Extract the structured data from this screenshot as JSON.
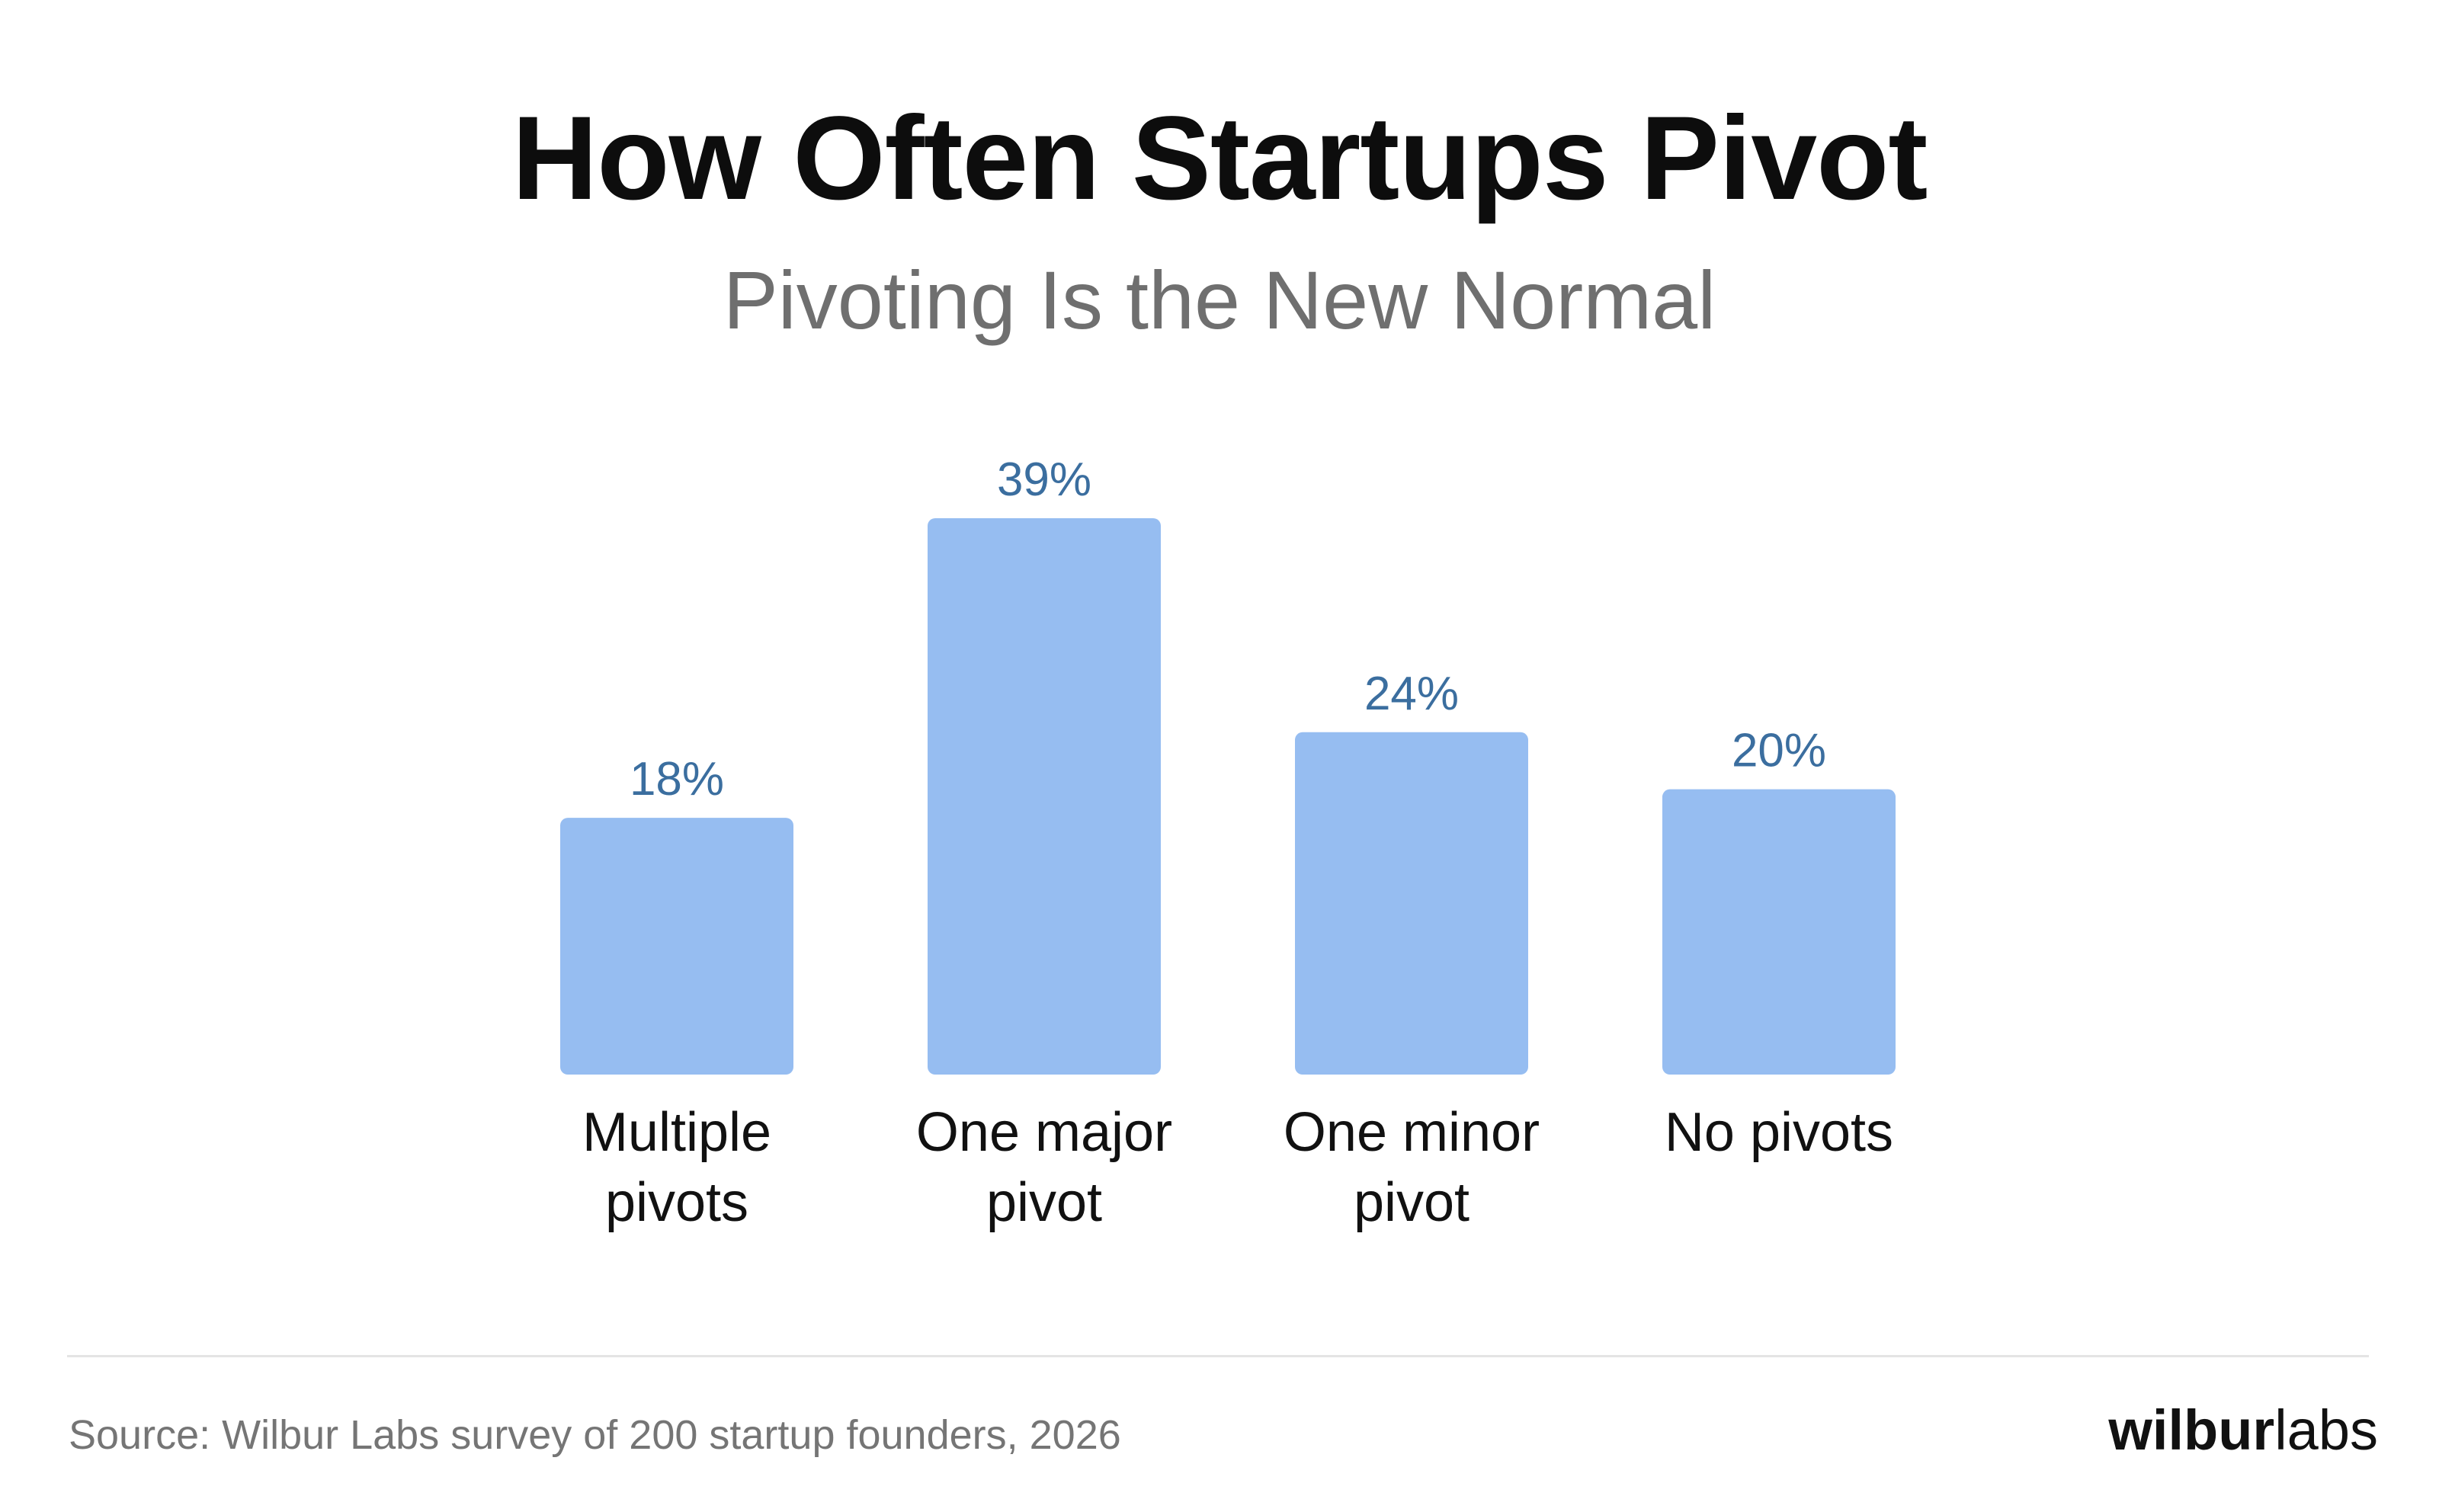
{
  "header": {
    "title": "How Often Startups Pivot",
    "subtitle": "Pivoting Is the New Normal"
  },
  "chart_data": {
    "type": "bar",
    "title": "How Often Startups Pivot",
    "subtitle": "Pivoting Is the New Normal",
    "categories": [
      [
        "Multiple",
        "pivots"
      ],
      [
        "One major",
        "pivot"
      ],
      [
        "One minor",
        "pivot"
      ],
      [
        "No pivots"
      ]
    ],
    "values": [
      18,
      39,
      24,
      20
    ],
    "value_labels": [
      "18%",
      "39%",
      "24%",
      "20%"
    ],
    "unit": "%",
    "ylim": [
      0,
      39
    ],
    "grid": false,
    "legend": "none",
    "colors": {
      "bar": "#96bdf1",
      "value_label": "#3b6e9f",
      "category_label": "#111111"
    }
  },
  "footer": {
    "source": "Source: Wilbur Labs survey of 200 startup founders, 2026",
    "logo_bold": "wilbur",
    "logo_light": "labs"
  }
}
